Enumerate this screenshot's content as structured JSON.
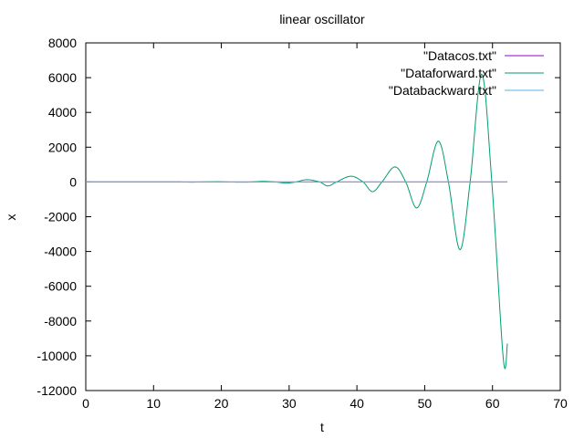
{
  "chart_data": {
    "type": "line",
    "title": "linear oscillator",
    "xlabel": "t",
    "ylabel": "x",
    "xlim": [
      0,
      70
    ],
    "ylim": [
      -12000,
      8000
    ],
    "xticks": [
      0,
      10,
      20,
      30,
      40,
      50,
      60,
      70
    ],
    "yticks": [
      -12000,
      -10000,
      -8000,
      -6000,
      -4000,
      -2000,
      0,
      2000,
      4000,
      6000,
      8000
    ],
    "grid": false,
    "legend_position": "top-right",
    "series": [
      {
        "name": "\"Datacos.txt\"",
        "color": "#9400d3",
        "x": [
          0,
          62.2
        ],
        "y": [
          0,
          0
        ]
      },
      {
        "name": "\"Dataforward.txt\"",
        "color": "#009e73",
        "x": [
          0,
          2,
          4,
          6,
          8,
          10,
          12,
          13.7,
          15.7,
          17.2,
          19.7,
          20.8,
          23.0,
          24.4,
          26.1,
          28.0,
          29.5,
          31.0,
          32.6,
          34.5,
          35.7,
          37.0,
          39.1,
          40.9,
          42.3,
          43.7,
          45.6,
          47.2,
          48.8,
          50.3,
          52.0,
          53.5,
          55.2,
          56.7,
          58.4,
          59.9,
          61.6,
          62.2
        ],
        "y": [
          0,
          0,
          0,
          0,
          0,
          0,
          0,
          0,
          -10,
          0,
          12,
          0,
          -14,
          0,
          35,
          0,
          -65,
          0,
          130,
          0,
          -230,
          0,
          330,
          0,
          -560,
          0,
          870,
          0,
          -1500,
          0,
          2350,
          0,
          -3900,
          0,
          6200,
          0,
          -10200,
          -9300
        ]
      },
      {
        "name": "\"Databackward.txt\"",
        "color": "#56b4e9",
        "x": [
          0,
          62.2
        ],
        "y": [
          0,
          0
        ]
      }
    ]
  }
}
